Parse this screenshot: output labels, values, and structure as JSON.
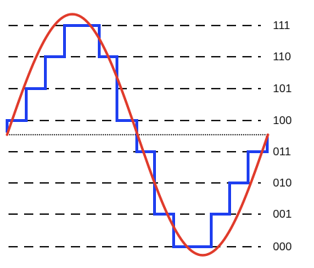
{
  "levels": [
    {
      "code": "111"
    },
    {
      "code": "110"
    },
    {
      "code": "101"
    },
    {
      "code": "100"
    },
    {
      "code": "011"
    },
    {
      "code": "010"
    },
    {
      "code": "001"
    },
    {
      "code": "000"
    }
  ],
  "colors": {
    "sine": "#e03a2a",
    "staircase": "#1f3ff0",
    "dashes": "#1a1a1a",
    "axis": "#333333"
  }
}
